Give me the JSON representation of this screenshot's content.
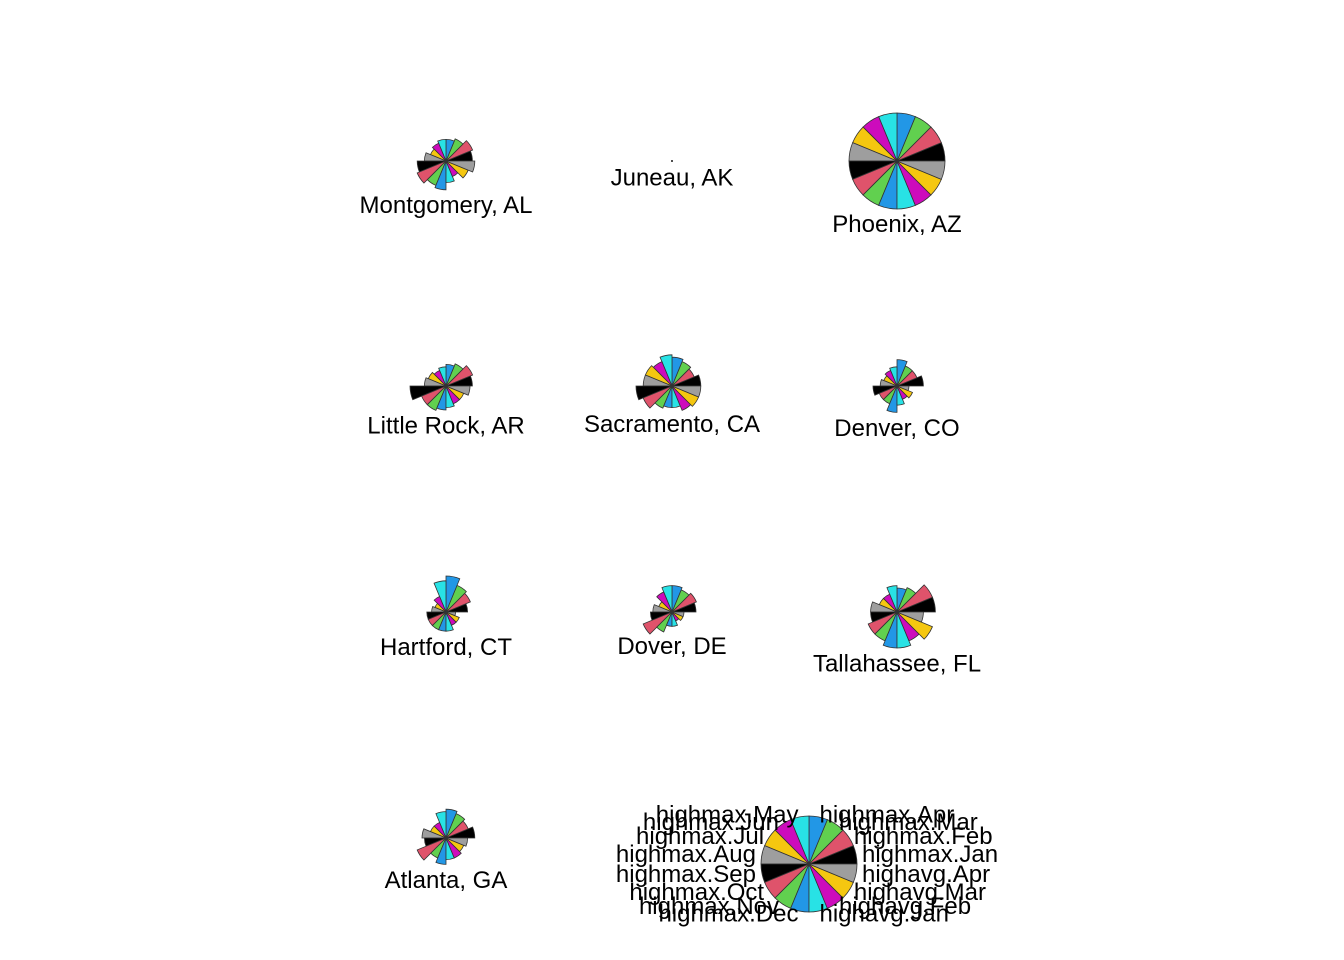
{
  "chart_data": {
    "type": "stars",
    "title": "",
    "variables": [
      "highmax.Jan",
      "highmax.Feb",
      "highmax.Mar",
      "highmax.Apr",
      "highmax.May",
      "highmax.Jun",
      "highmax.Jul",
      "highmax.Aug",
      "highmax.Sep",
      "highmax.Oct",
      "highmax.Nov",
      "highmax.Dec",
      "highavg.Jan",
      "highavg.Feb",
      "highavg.Mar",
      "highavg.Apr"
    ],
    "colors": [
      "#000000",
      "#DF536B",
      "#61D04F",
      "#2297E6",
      "#28E2E5",
      "#CD0BBC",
      "#F5C710",
      "#9E9E9E",
      "#000000",
      "#DF536B",
      "#61D04F",
      "#2297E6",
      "#28E2E5",
      "#CD0BBC",
      "#F5C710",
      "#9E9E9E"
    ],
    "stations": [
      {
        "name": "Montgomery, AL",
        "values": [
          0.55,
          0.6,
          0.5,
          0.45,
          0.45,
          0.4,
          0.35,
          0.45,
          0.6,
          0.65,
          0.55,
          0.6,
          0.45,
          0.35,
          0.5,
          0.6
        ]
      },
      {
        "name": "Juneau, AK",
        "values": [
          0.01,
          0.01,
          0.01,
          0.01,
          0.01,
          0.01,
          0.01,
          0.01,
          0.01,
          0.01,
          0.01,
          0.01,
          0.01,
          0.01,
          0.01,
          0.01
        ]
      },
      {
        "name": "Phoenix, AZ",
        "values": [
          1.0,
          1.0,
          1.0,
          1.0,
          1.0,
          1.0,
          1.0,
          1.0,
          1.0,
          1.0,
          1.0,
          1.0,
          1.0,
          1.0,
          1.0,
          1.0
        ]
      },
      {
        "name": "Little Rock, AR",
        "values": [
          0.55,
          0.6,
          0.5,
          0.45,
          0.4,
          0.35,
          0.4,
          0.45,
          0.75,
          0.55,
          0.55,
          0.5,
          0.45,
          0.4,
          0.4,
          0.5
        ]
      },
      {
        "name": "Sacramento, CA",
        "values": [
          0.6,
          0.5,
          0.55,
          0.6,
          0.65,
          0.55,
          0.6,
          0.6,
          0.75,
          0.65,
          0.5,
          0.45,
          0.45,
          0.55,
          0.6,
          0.6
        ]
      },
      {
        "name": "Denver, CO",
        "values": [
          0.55,
          0.45,
          0.45,
          0.55,
          0.4,
          0.35,
          0.3,
          0.35,
          0.5,
          0.4,
          0.4,
          0.55,
          0.4,
          0.3,
          0.35,
          0.25
        ]
      },
      {
        "name": "Hartford, CT",
        "values": [
          0.45,
          0.55,
          0.6,
          0.75,
          0.65,
          0.35,
          0.25,
          0.3,
          0.4,
          0.4,
          0.4,
          0.4,
          0.4,
          0.3,
          0.3,
          0.2
        ]
      },
      {
        "name": "Dover, DE",
        "values": [
          0.5,
          0.55,
          0.5,
          0.55,
          0.55,
          0.45,
          0.3,
          0.4,
          0.45,
          0.65,
          0.45,
          0.3,
          0.3,
          0.2,
          0.25,
          0.25
        ]
      },
      {
        "name": "Tallahassee, FL",
        "values": [
          0.8,
          0.8,
          0.55,
          0.5,
          0.55,
          0.4,
          0.4,
          0.55,
          0.55,
          0.65,
          0.65,
          0.75,
          0.75,
          0.65,
          0.8,
          0.55
        ]
      },
      {
        "name": "Atlanta, GA",
        "values": [
          0.6,
          0.5,
          0.55,
          0.6,
          0.55,
          0.35,
          0.35,
          0.5,
          0.45,
          0.65,
          0.45,
          0.55,
          0.45,
          0.45,
          0.4,
          0.45
        ]
      }
    ]
  }
}
